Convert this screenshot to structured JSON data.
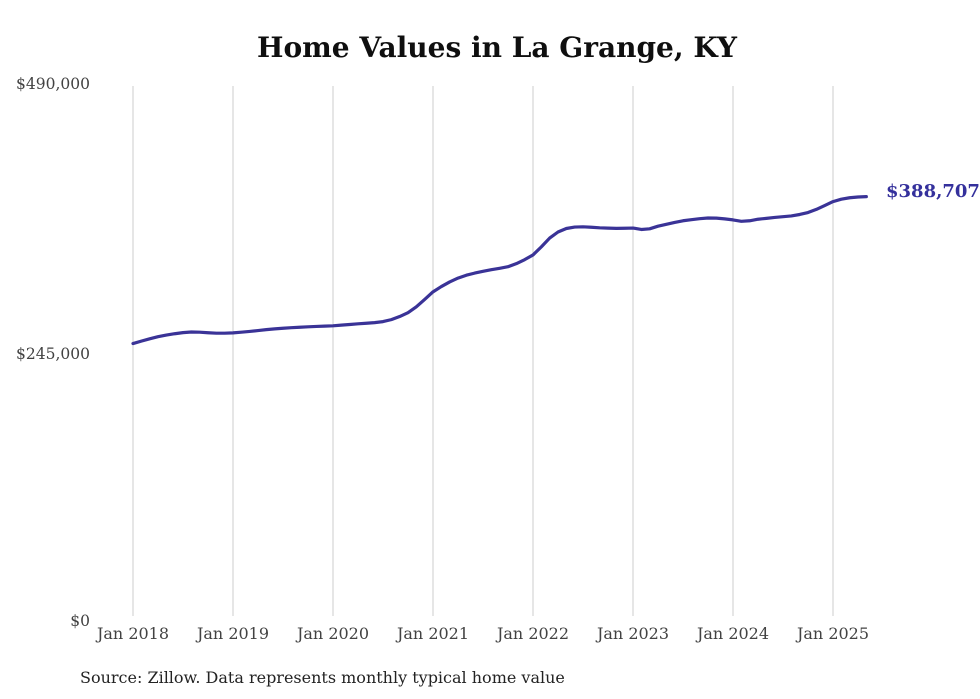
{
  "chart": {
    "title": "Home Values in La Grange, KY",
    "end_label": "$388,707",
    "source_note": "Source: Zillow. Data represents monthly typical home value",
    "line_color": "#3a3397",
    "grid_color": "#cccccc",
    "title_color": "#0f0f0f",
    "axis_label_color": "#424242"
  },
  "chart_data": {
    "type": "line",
    "title": "Home Values in La Grange, KY",
    "xlabel": "",
    "ylabel": "",
    "ylim": [
      0,
      490000
    ],
    "grid": "vertical-only",
    "legend": "none",
    "y_tick_values": [
      490000,
      245000,
      0
    ],
    "y_tick_labels": [
      "$490,000",
      "$245,000",
      "$0"
    ],
    "x_tick_labels": [
      "Jan 2018",
      "Jan 2019",
      "Jan 2020",
      "Jan 2021",
      "Jan 2022",
      "Jan 2023",
      "Jan 2024",
      "Jan 2025"
    ],
    "end_value": 388707,
    "end_value_label": "$388,707",
    "x": [
      "2018-01",
      "2018-02",
      "2018-03",
      "2018-04",
      "2018-05",
      "2018-06",
      "2018-07",
      "2018-08",
      "2018-09",
      "2018-10",
      "2018-11",
      "2018-12",
      "2019-01",
      "2019-02",
      "2019-03",
      "2019-04",
      "2019-05",
      "2019-06",
      "2019-07",
      "2019-08",
      "2019-09",
      "2019-10",
      "2019-11",
      "2019-12",
      "2020-01",
      "2020-02",
      "2020-03",
      "2020-04",
      "2020-05",
      "2020-06",
      "2020-07",
      "2020-08",
      "2020-09",
      "2020-10",
      "2020-11",
      "2020-12",
      "2021-01",
      "2021-02",
      "2021-03",
      "2021-04",
      "2021-05",
      "2021-06",
      "2021-07",
      "2021-08",
      "2021-09",
      "2021-10",
      "2021-11",
      "2021-12",
      "2022-01",
      "2022-02",
      "2022-03",
      "2022-04",
      "2022-05",
      "2022-06",
      "2022-07",
      "2022-08",
      "2022-09",
      "2022-10",
      "2022-11",
      "2022-12",
      "2023-01",
      "2023-02",
      "2023-03",
      "2023-04",
      "2023-05",
      "2023-06",
      "2023-07",
      "2023-08",
      "2023-09",
      "2023-10",
      "2023-11",
      "2023-12",
      "2024-01",
      "2024-02",
      "2024-03",
      "2024-04",
      "2024-05",
      "2024-06",
      "2024-07",
      "2024-08",
      "2024-09",
      "2024-10",
      "2024-11",
      "2024-12",
      "2025-01",
      "2025-02",
      "2025-03",
      "2025-04",
      "2025-05"
    ],
    "values": [
      255400,
      257600,
      259700,
      261600,
      263100,
      264300,
      265300,
      265900,
      265700,
      265200,
      264800,
      264800,
      265100,
      265700,
      266400,
      267200,
      268000,
      268700,
      269300,
      269800,
      270200,
      270600,
      270900,
      271200,
      271500,
      272100,
      272700,
      273300,
      273800,
      274400,
      275300,
      277100,
      279900,
      283400,
      288700,
      295400,
      302300,
      307100,
      311300,
      314800,
      317400,
      319300,
      320900,
      322400,
      323700,
      325100,
      327900,
      331500,
      335800,
      343100,
      351100,
      356600,
      359800,
      361100,
      361300,
      360900,
      360400,
      360100,
      359900,
      360000,
      360200,
      358900,
      359500,
      361900,
      363600,
      365300,
      366800,
      367800,
      368700,
      369300,
      369200,
      368500,
      367600,
      366300,
      366800,
      368200,
      369000,
      369800,
      370500,
      371200,
      372500,
      374300,
      377100,
      380600,
      384200,
      386400,
      387700,
      388400,
      388707
    ]
  }
}
